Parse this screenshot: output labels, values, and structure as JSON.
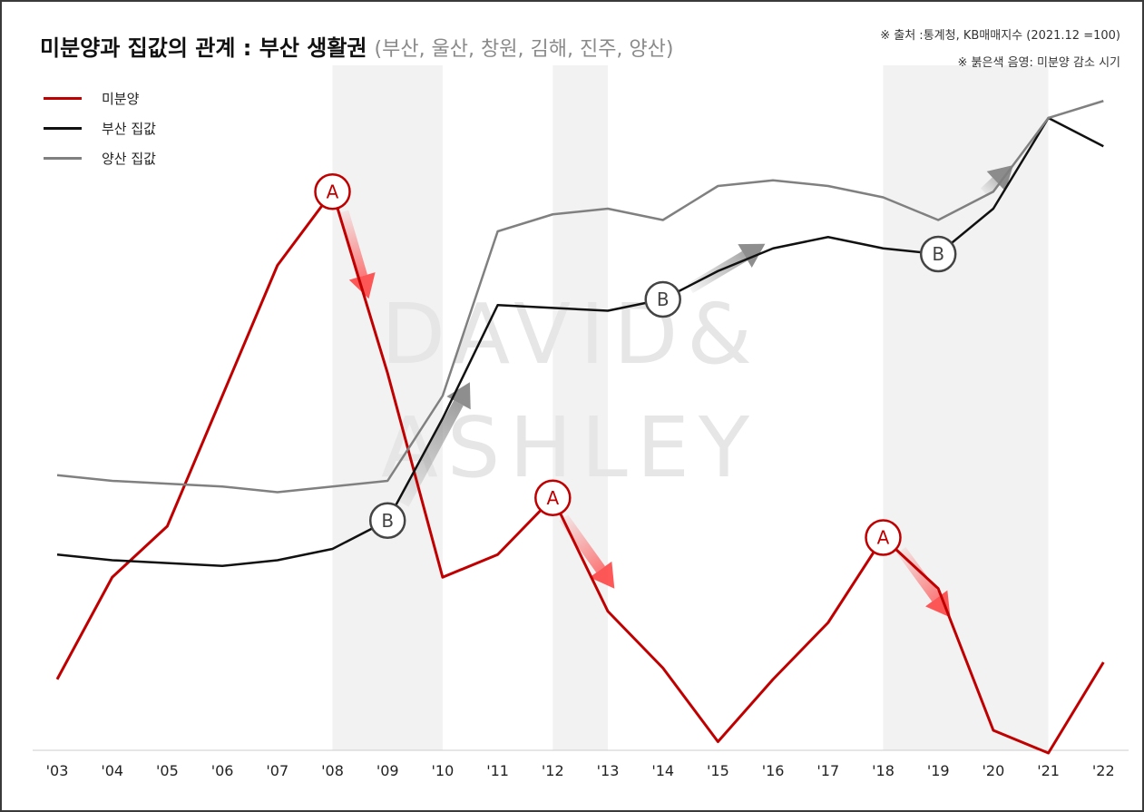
{
  "title": "미분양과 집값의 관계 : 부산 생활권",
  "subtitle": "(부산, 울산, 창원, 김해, 진주, 양산)",
  "source": "※ 출처 :통계청, KB매매지수 (2021.12 =100)",
  "shade_note": "※ 붉은색 음영: 미분양 감소 시기",
  "watermark": [
    "DAVID&",
    "ASHLEY"
  ],
  "colors": {
    "unsold": "#c00000",
    "busan": "#111111",
    "yangsan": "#808080",
    "shade": "#f2f2f2"
  },
  "markers": {
    "a_label": "A",
    "b_label": "B"
  },
  "chart_data": {
    "type": "line",
    "x": [
      "'03",
      "'04",
      "'05",
      "'06",
      "'07",
      "'08",
      "'09",
      "'10",
      "'11",
      "'12",
      "'13",
      "'14",
      "'15",
      "'16",
      "'17",
      "'18",
      "'19",
      "'20",
      "'21",
      "'22"
    ],
    "series": [
      {
        "name": "미분양",
        "color": "#c00000",
        "values": [
          21,
          39,
          48,
          71,
          94,
          107,
          75,
          39,
          43,
          53,
          33,
          23,
          10,
          21,
          31,
          46,
          37,
          12,
          8,
          24
        ]
      },
      {
        "name": "부산 집값",
        "color": "#111111",
        "values": [
          43,
          42,
          41.5,
          41,
          42,
          44,
          49,
          67,
          87,
          86.5,
          86,
          88,
          93,
          97,
          99,
          97,
          96,
          104,
          120,
          115
        ]
      },
      {
        "name": "양산 집값",
        "color": "#808080",
        "values": [
          57,
          56,
          55.5,
          55,
          54,
          55,
          56,
          71,
          100,
          103,
          104,
          102,
          108,
          109,
          108,
          106,
          102,
          107,
          120,
          123
        ]
      }
    ],
    "shaded_periods": [
      [
        "'08",
        "'10"
      ],
      [
        "'12",
        "'13"
      ],
      [
        "'18",
        "'21"
      ]
    ],
    "annotations": [
      {
        "label": "A",
        "x": "'08",
        "series": "미분양"
      },
      {
        "label": "A",
        "x": "'12",
        "series": "미분양"
      },
      {
        "label": "A",
        "x": "'18",
        "series": "미분양"
      },
      {
        "label": "B",
        "x": "'09",
        "series": "부산 집값"
      },
      {
        "label": "B",
        "x": "'14",
        "series": "부산 집값"
      },
      {
        "label": "B",
        "x": "'19",
        "series": "부산 집값"
      }
    ],
    "legend": "top-left",
    "grid": false
  }
}
